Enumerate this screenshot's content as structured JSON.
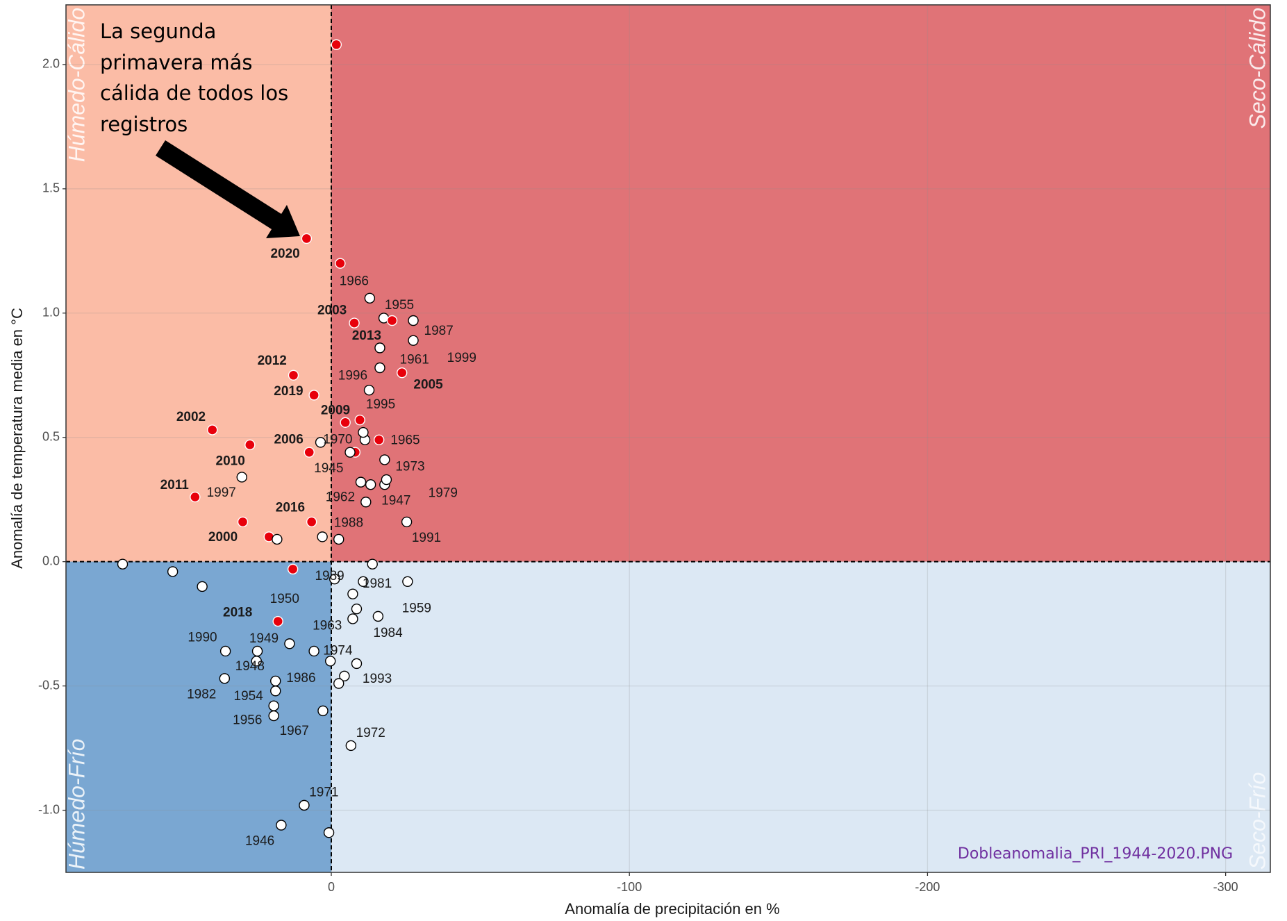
{
  "chart_data": {
    "type": "scatter",
    "x_label": "Anomalía de precipitación en %",
    "y_label": "Anomalía de temperatura media en °C",
    "xlim": [
      89,
      -315
    ],
    "ylim": [
      -1.25,
      2.24
    ],
    "xticks": [
      0,
      -100,
      -200,
      -300
    ],
    "yticks": [
      {
        "value": -1,
        "label": "-1.0"
      },
      -0.5,
      {
        "value": 0,
        "label": "0.0"
      },
      0.5,
      {
        "value": 1,
        "label": "1.0"
      },
      1.5,
      {
        "value": 2,
        "label": "2.0"
      }
    ],
    "grid": true,
    "point_color": "#ffffff",
    "highlight_color": "#e8000b",
    "quadrant_colors": {
      "top_left": "#fbbca6",
      "top_right": "#e07377",
      "bottom_left": "#7aa7d2",
      "bottom_right": "#dce8f4"
    },
    "quadrant_labels": {
      "top_left": "Húmedo-Cálido",
      "top_right": "Seco-Cálido",
      "bottom_left": "Húmedo-Frío",
      "bottom_right": "Seco-Frío"
    },
    "annotation": [
      "La segunda",
      "primavera más",
      "cálida de todos los",
      "registros"
    ],
    "caption": "Dobleanomalia_PRI_1944-2020.PNG",
    "points": [
      {
        "x": -1.7,
        "y": 2.08,
        "highlight": true
      },
      {
        "x": 8.3,
        "y": 1.3,
        "highlight": true,
        "label": "2020",
        "bold": true
      },
      {
        "x": -3.0,
        "y": 1.2,
        "highlight": true
      },
      {
        "x": -12.9,
        "y": 1.06,
        "highlight": false,
        "label": "1966"
      },
      {
        "x": -7.7,
        "y": 0.96,
        "highlight": true,
        "label": "2003",
        "bold": true
      },
      {
        "x": -17.6,
        "y": 0.98,
        "highlight": false,
        "label": "1955"
      },
      {
        "x": -20.4,
        "y": 0.97,
        "highlight": true,
        "label": "2013",
        "bold": true
      },
      {
        "x": 12.7,
        "y": 0.75,
        "highlight": true,
        "label": "2012",
        "bold": true
      },
      {
        "x": 5.8,
        "y": 0.67,
        "highlight": true,
        "label": "2019",
        "bold": true
      },
      {
        "x": -23.7,
        "y": 0.76,
        "highlight": true,
        "label": "2005",
        "bold": true
      },
      {
        "x": 39.9,
        "y": 0.53,
        "highlight": true,
        "label": "2002",
        "bold": true
      },
      {
        "x": 27.3,
        "y": 0.47,
        "highlight": true
      },
      {
        "x": -4.7,
        "y": 0.56,
        "highlight": true,
        "label": "2009",
        "bold": true
      },
      {
        "x": -9.6,
        "y": 0.57,
        "highlight": true
      },
      {
        "x": -16.0,
        "y": 0.49,
        "highlight": true
      },
      {
        "x": 7.4,
        "y": 0.44,
        "highlight": true,
        "label": "2006",
        "bold": true
      },
      {
        "x": -8.0,
        "y": 0.44,
        "highlight": true
      },
      {
        "x": -6.3,
        "y": 0.44,
        "highlight": false,
        "label": "1945"
      },
      {
        "x": 30.0,
        "y": 0.34,
        "highlight": false,
        "label": "2010",
        "bold": true
      },
      {
        "x": 45.7,
        "y": 0.26,
        "highlight": true,
        "label": "2011",
        "bold": true
      },
      {
        "x": 29.7,
        "y": 0.16,
        "highlight": true,
        "label": "1997"
      },
      {
        "x": 6.6,
        "y": 0.16,
        "highlight": true,
        "label": "2016",
        "bold": true
      },
      {
        "x": 20.9,
        "y": 0.1,
        "highlight": true,
        "label": "2000",
        "bold": true
      },
      {
        "x": 18.2,
        "y": 0.09,
        "highlight": false
      },
      {
        "x": 3.0,
        "y": 0.1,
        "highlight": false
      },
      {
        "x": -2.5,
        "y": 0.09,
        "highlight": false
      },
      {
        "x": -11.6,
        "y": 0.24,
        "highlight": false,
        "label": "1988"
      },
      {
        "x": -9.9,
        "y": 0.32,
        "highlight": false,
        "label": "1962"
      },
      {
        "x": -13.2,
        "y": 0.31,
        "highlight": false,
        "label": "1947"
      },
      {
        "x": -17.9,
        "y": 0.31,
        "highlight": false,
        "label": "1979"
      },
      {
        "x": -18.5,
        "y": 0.33,
        "highlight": false
      },
      {
        "x": -17.9,
        "y": 0.41,
        "highlight": false,
        "label": "1973"
      },
      {
        "x": -11.3,
        "y": 0.49,
        "highlight": false,
        "label": "1965"
      },
      {
        "x": 3.6,
        "y": 0.48,
        "highlight": false,
        "label": "1970"
      },
      {
        "x": -10.7,
        "y": 0.52,
        "highlight": false
      },
      {
        "x": -12.7,
        "y": 0.69,
        "highlight": false,
        "label": "1995"
      },
      {
        "x": -16.3,
        "y": 0.78,
        "highlight": false,
        "label": "1996"
      },
      {
        "x": -16.3,
        "y": 0.86,
        "highlight": false,
        "label": "1961"
      },
      {
        "x": -27.5,
        "y": 0.89,
        "highlight": false,
        "label": "1999"
      },
      {
        "x": -27.5,
        "y": 0.97,
        "highlight": false,
        "label": "1987"
      },
      {
        "x": -25.3,
        "y": 0.16,
        "highlight": false,
        "label": "1991"
      },
      {
        "x": 70,
        "y": -0.01,
        "highlight": false
      },
      {
        "x": 53.2,
        "y": -0.04,
        "highlight": false
      },
      {
        "x": 43.3,
        "y": -0.1,
        "highlight": false
      },
      {
        "x": 12.9,
        "y": -0.03,
        "highlight": true
      },
      {
        "x": -13.8,
        "y": -0.01,
        "highlight": false
      },
      {
        "x": -1.1,
        "y": -0.07,
        "highlight": false,
        "label": "1989"
      },
      {
        "x": -10.7,
        "y": -0.08,
        "highlight": false,
        "label": "1981"
      },
      {
        "x": -7.2,
        "y": -0.13,
        "highlight": false
      },
      {
        "x": -25.6,
        "y": -0.08,
        "highlight": false
      },
      {
        "x": -8.5,
        "y": -0.19,
        "highlight": false,
        "label": "1959"
      },
      {
        "x": -15.7,
        "y": -0.22,
        "highlight": false,
        "label": "1984"
      },
      {
        "x": -7.2,
        "y": -0.23,
        "highlight": false,
        "label": "1963"
      },
      {
        "x": 17.9,
        "y": -0.24,
        "highlight": true,
        "label": "2018",
        "bold": true
      },
      {
        "x": 14.0,
        "y": -0.33,
        "highlight": false,
        "label": "1950"
      },
      {
        "x": 35.5,
        "y": -0.36,
        "highlight": false,
        "label": "1990"
      },
      {
        "x": 24.8,
        "y": -0.36,
        "highlight": false,
        "label": "1949"
      },
      {
        "x": 25.1,
        "y": -0.4,
        "highlight": false,
        "label": "1948"
      },
      {
        "x": 5.8,
        "y": -0.36,
        "highlight": false,
        "label": "1974"
      },
      {
        "x": 0.3,
        "y": -0.4,
        "highlight": false
      },
      {
        "x": -8.5,
        "y": -0.41,
        "highlight": false,
        "label": "1993"
      },
      {
        "x": -4.4,
        "y": -0.46,
        "highlight": false
      },
      {
        "x": -2.5,
        "y": -0.49,
        "highlight": false
      },
      {
        "x": 18.7,
        "y": -0.48,
        "highlight": false,
        "label": "1986"
      },
      {
        "x": 35.8,
        "y": -0.47,
        "highlight": false,
        "label": "1982"
      },
      {
        "x": 18.7,
        "y": -0.52,
        "highlight": false,
        "label": "1954"
      },
      {
        "x": 19.3,
        "y": -0.58,
        "highlight": false,
        "label": "1956"
      },
      {
        "x": 19.3,
        "y": -0.62,
        "highlight": false,
        "label": "1967"
      },
      {
        "x": 2.8,
        "y": -0.6,
        "highlight": false
      },
      {
        "x": -6.6,
        "y": -0.74,
        "highlight": false,
        "label": "1972"
      },
      {
        "x": 9.1,
        "y": -0.98,
        "highlight": false,
        "label": "1971"
      },
      {
        "x": 16.8,
        "y": -1.06,
        "highlight": false,
        "label": "1946"
      },
      {
        "x": 0.8,
        "y": -1.09,
        "highlight": false
      }
    ]
  }
}
